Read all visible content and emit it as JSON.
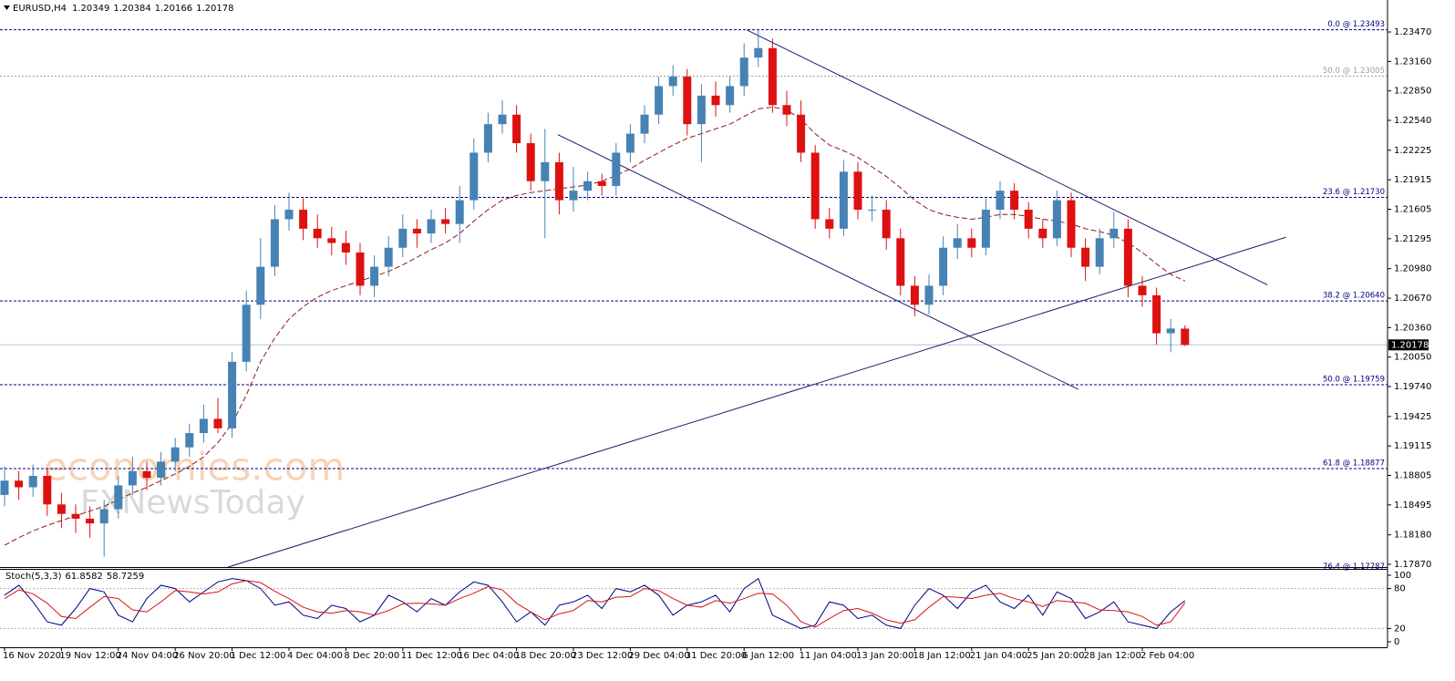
{
  "chart_data": [
    {
      "type": "candlestick",
      "title": "EURUSD,H4",
      "categories": [
        "16 Nov 2020",
        null,
        null,
        null,
        "19 Nov 12:00",
        null,
        null,
        null,
        "24 Nov 04:00",
        null,
        null,
        null,
        "26 Nov 20:00",
        null,
        null,
        null,
        "1 Dec 12:00",
        null,
        null,
        null,
        "4 Dec 04:00",
        null,
        null,
        null,
        "8 Dec 20:00",
        null,
        null,
        null,
        "11 Dec 12:00",
        null,
        null,
        null,
        "16 Dec 04:00",
        null,
        null,
        null,
        "18 Dec 20:00",
        null,
        null,
        null,
        "23 Dec 12:00",
        null,
        null,
        null,
        "29 Dec 04:00",
        null,
        null,
        null,
        "31 Dec 20:00",
        null,
        null,
        null,
        "6 Jan 12:00",
        null,
        null,
        null,
        "11 Jan 04:00",
        null,
        null,
        null,
        "13 Jan 20:00",
        null,
        null,
        null,
        "18 Jan 12:00",
        null,
        null,
        null,
        "21 Jan 04:00",
        null,
        null,
        null,
        "25 Jan 20:00",
        null,
        null,
        null,
        "28 Jan 12:00",
        null,
        null,
        null,
        "2 Feb 04:00",
        null,
        null,
        null
      ],
      "open": [
        1.186,
        1.1875,
        1.1868,
        1.188,
        1.185,
        1.184,
        1.1835,
        1.183,
        1.1845,
        1.187,
        1.1885,
        1.1878,
        1.1895,
        1.191,
        1.1925,
        1.194,
        1.193,
        1.2,
        1.206,
        1.21,
        1.215,
        1.216,
        1.214,
        1.213,
        1.2125,
        1.2115,
        1.208,
        1.21,
        1.212,
        1.214,
        1.2135,
        1.215,
        1.2145,
        1.217,
        1.222,
        1.225,
        1.226,
        1.223,
        1.219,
        1.221,
        1.217,
        1.218,
        1.219,
        1.2185,
        1.222,
        1.224,
        1.226,
        1.229,
        1.23,
        1.225,
        1.228,
        1.227,
        1.229,
        1.232,
        1.233,
        1.227,
        1.226,
        1.222,
        1.215,
        1.214,
        1.22,
        1.216,
        1.216,
        1.213,
        1.208,
        1.206,
        1.208,
        1.212,
        1.213,
        1.212,
        1.216,
        1.218,
        1.216,
        1.214,
        1.213,
        1.217,
        1.212,
        1.21,
        1.213,
        1.214,
        1.208,
        1.207,
        1.203,
        1.20349
      ],
      "high": [
        1.189,
        1.1885,
        1.1892,
        1.1888,
        1.1862,
        1.185,
        1.1848,
        1.1855,
        1.188,
        1.19,
        1.1895,
        1.1905,
        1.192,
        1.1935,
        1.1955,
        1.1962,
        1.201,
        1.2075,
        1.213,
        1.2165,
        1.2178,
        1.2172,
        1.2155,
        1.2142,
        1.2138,
        1.2125,
        1.2112,
        1.2132,
        1.2155,
        1.215,
        1.216,
        1.2162,
        1.2185,
        1.2235,
        1.2262,
        1.2275,
        1.227,
        1.224,
        1.2245,
        1.222,
        1.2205,
        1.22,
        1.2198,
        1.223,
        1.225,
        1.227,
        1.23,
        1.2312,
        1.2308,
        1.2292,
        1.2295,
        1.23,
        1.2335,
        1.2349,
        1.234,
        1.2285,
        1.2275,
        1.2228,
        1.2162,
        1.2212,
        1.221,
        1.2175,
        1.217,
        1.214,
        1.209,
        1.2092,
        1.2132,
        1.2145,
        1.214,
        1.2172,
        1.219,
        1.2188,
        1.2168,
        1.215,
        1.218,
        1.2178,
        1.213,
        1.214,
        1.2158,
        1.215,
        1.209,
        1.2078,
        1.2045,
        1.20384
      ],
      "low": [
        1.1848,
        1.1855,
        1.1858,
        1.1838,
        1.1825,
        1.182,
        1.1815,
        1.1795,
        1.1835,
        1.186,
        1.1865,
        1.187,
        1.1885,
        1.19,
        1.1915,
        1.1925,
        1.192,
        1.199,
        1.2045,
        1.209,
        1.2138,
        1.2128,
        1.212,
        1.2112,
        1.2102,
        1.207,
        1.2068,
        1.209,
        1.211,
        1.212,
        1.2125,
        1.2135,
        1.2125,
        1.216,
        1.221,
        1.224,
        1.222,
        1.218,
        1.213,
        1.2155,
        1.2158,
        1.217,
        1.2175,
        1.2175,
        1.221,
        1.223,
        1.225,
        1.228,
        1.2238,
        1.221,
        1.2258,
        1.2262,
        1.228,
        1.231,
        1.2262,
        1.2248,
        1.221,
        1.214,
        1.213,
        1.2132,
        1.215,
        1.2148,
        1.2118,
        1.207,
        1.2048,
        1.205,
        1.207,
        1.2108,
        1.211,
        1.2112,
        1.215,
        1.215,
        1.213,
        1.212,
        1.2122,
        1.211,
        1.2085,
        1.2092,
        1.212,
        1.2068,
        1.2058,
        1.2018,
        1.201,
        1.20166
      ],
      "close": [
        1.1875,
        1.1868,
        1.188,
        1.185,
        1.184,
        1.1835,
        1.183,
        1.1845,
        1.187,
        1.1885,
        1.1878,
        1.1895,
        1.191,
        1.1925,
        1.194,
        1.193,
        1.2,
        1.206,
        1.21,
        1.215,
        1.216,
        1.214,
        1.213,
        1.2125,
        1.2115,
        1.208,
        1.21,
        1.212,
        1.214,
        1.2135,
        1.215,
        1.2145,
        1.217,
        1.222,
        1.225,
        1.226,
        1.223,
        1.219,
        1.221,
        1.217,
        1.218,
        1.219,
        1.2185,
        1.222,
        1.224,
        1.226,
        1.229,
        1.23,
        1.225,
        1.228,
        1.227,
        1.229,
        1.232,
        1.233,
        1.227,
        1.226,
        1.222,
        1.215,
        1.214,
        1.22,
        1.216,
        1.216,
        1.213,
        1.208,
        1.206,
        1.208,
        1.212,
        1.213,
        1.212,
        1.216,
        1.218,
        1.216,
        1.214,
        1.213,
        1.217,
        1.212,
        1.21,
        1.213,
        1.214,
        1.208,
        1.207,
        1.203,
        1.2035,
        1.20178
      ],
      "up_color": "#4682b4",
      "down_color": "#dd1111",
      "ma": {
        "color": "#8b1a1a",
        "values": [
          1.1807,
          1.1815,
          1.1822,
          1.1828,
          1.1833,
          1.1838,
          1.1843,
          1.1848,
          1.1855,
          1.1862,
          1.1868,
          1.1875,
          1.1882,
          1.189,
          1.19,
          1.1915,
          1.1935,
          1.1965,
          1.2,
          1.2025,
          1.2045,
          1.2058,
          1.2068,
          1.2075,
          1.208,
          1.2085,
          1.209,
          1.2095,
          1.2102,
          1.211,
          1.2118,
          1.2125,
          1.2135,
          1.2148,
          1.216,
          1.217,
          1.2175,
          1.2178,
          1.218,
          1.2182,
          1.2184,
          1.2186,
          1.219,
          1.2196,
          1.2203,
          1.2212,
          1.222,
          1.2228,
          1.2235,
          1.224,
          1.2245,
          1.225,
          1.2258,
          1.2266,
          1.2268,
          1.2265,
          1.2255,
          1.224,
          1.2228,
          1.2222,
          1.2215,
          1.2205,
          1.2195,
          1.2183,
          1.217,
          1.216,
          1.2155,
          1.2152,
          1.215,
          1.2152,
          1.2155,
          1.2155,
          1.2153,
          1.215,
          1.2148,
          1.2145,
          1.214,
          1.2137,
          1.2133,
          1.2125,
          1.2115,
          1.2103,
          1.2092,
          1.2085
        ]
      },
      "ylim": [
        1.17841,
        1.23806
      ],
      "yticks": [
        {
          "value": 1.2347,
          "label": "1.23470"
        },
        {
          "value": 1.2316,
          "label": "1.23160"
        },
        {
          "value": 1.2285,
          "label": "1.22850"
        },
        {
          "value": 1.2254,
          "label": "1.22540"
        },
        {
          "value": 1.22225,
          "label": "1.22225"
        },
        {
          "value": 1.21915,
          "label": "1.21915"
        },
        {
          "value": 1.21605,
          "label": "1.21605"
        },
        {
          "value": 1.21295,
          "label": "1.21295"
        },
        {
          "value": 1.2098,
          "label": "1.20980"
        },
        {
          "value": 1.2067,
          "label": "1.20670"
        },
        {
          "value": 1.2036,
          "label": "1.20360"
        },
        {
          "value": 1.2005,
          "label": "1.20050"
        },
        {
          "value": 1.1974,
          "label": "1.19740"
        },
        {
          "value": 1.19425,
          "label": "1.19425"
        },
        {
          "value": 1.19115,
          "label": "1.19115"
        },
        {
          "value": 1.18805,
          "label": "1.18805"
        },
        {
          "value": 1.18495,
          "label": "1.18495"
        },
        {
          "value": 1.1818,
          "label": "1.18180"
        },
        {
          "value": 1.1787,
          "label": "1.17870"
        }
      ],
      "fib_levels": [
        {
          "value": 1.23493,
          "label": "0.0 @ 1.23493",
          "color": "#000080"
        },
        {
          "value": 1.23005,
          "label": "50.0 @ 1.23005",
          "color": "#a0a0a0"
        },
        {
          "value": 1.2173,
          "label": "23.6 @ 1.21730",
          "color": "#000080"
        },
        {
          "value": 1.2064,
          "label": "38.2 @ 1.20640",
          "color": "#000080"
        },
        {
          "value": 1.19759,
          "label": "50.0 @ 1.19759",
          "color": "#000080"
        },
        {
          "value": 1.18877,
          "label": "61.8 @ 1.18877",
          "color": "#000080"
        },
        {
          "value": 1.17787,
          "label": "76.4 @ 1.17787",
          "color": "#000080"
        }
      ],
      "trendlines": [
        {
          "x": [
            52.2,
            88.8
          ],
          "y": [
            1.2349,
            1.2081
          ]
        },
        {
          "x": [
            38.9,
            75.5
          ],
          "y": [
            1.2239,
            1.1971
          ]
        },
        {
          "x": [
            15.7,
            90.1
          ],
          "y": [
            1.1784,
            1.2131
          ]
        }
      ],
      "trendline_color": "#1c1c70",
      "watermarks": [
        "economies.com",
        "FXNewsToday"
      ]
    },
    {
      "type": "line",
      "title": "Stoch(5,3,3)",
      "series": [
        {
          "color": "#000080",
          "values": [
            70,
            85,
            60,
            30,
            25,
            50,
            80,
            75,
            40,
            30,
            65,
            85,
            80,
            60,
            75,
            90,
            95,
            92,
            80,
            55,
            60,
            40,
            35,
            55,
            50,
            30,
            40,
            70,
            60,
            45,
            65,
            55,
            75,
            90,
            85,
            60,
            30,
            45,
            25,
            55,
            60,
            70,
            50,
            80,
            75,
            85,
            70,
            40,
            55,
            60,
            70,
            45,
            80,
            95,
            40,
            30,
            20,
            25,
            60,
            55,
            35,
            40,
            25,
            20,
            55,
            80,
            70,
            50,
            75,
            85,
            60,
            50,
            70,
            40,
            75,
            65,
            35,
            45,
            60,
            30,
            25,
            20,
            45,
            61.8582
          ]
        },
        {
          "color": "#dd1111",
          "values": [
            65,
            78,
            72,
            58,
            38,
            35,
            52,
            68,
            65,
            48,
            45,
            60,
            77,
            75,
            72,
            75,
            87,
            92,
            89,
            76,
            65,
            52,
            45,
            43,
            47,
            45,
            40,
            47,
            57,
            58,
            57,
            55,
            65,
            73,
            83,
            78,
            58,
            45,
            33,
            42,
            47,
            62,
            60,
            67,
            68,
            80,
            77,
            65,
            55,
            52,
            62,
            58,
            65,
            73,
            72,
            55,
            30,
            22,
            35,
            47,
            50,
            43,
            33,
            28,
            33,
            52,
            68,
            67,
            65,
            70,
            73,
            65,
            60,
            53,
            62,
            60,
            58,
            48,
            47,
            45,
            38,
            25,
            30,
            58.7259
          ]
        }
      ],
      "ylim": [
        -8.2,
        109.6
      ],
      "yticks": [
        100,
        80,
        20,
        0
      ],
      "levels": [
        80,
        20
      ]
    }
  ]
}
